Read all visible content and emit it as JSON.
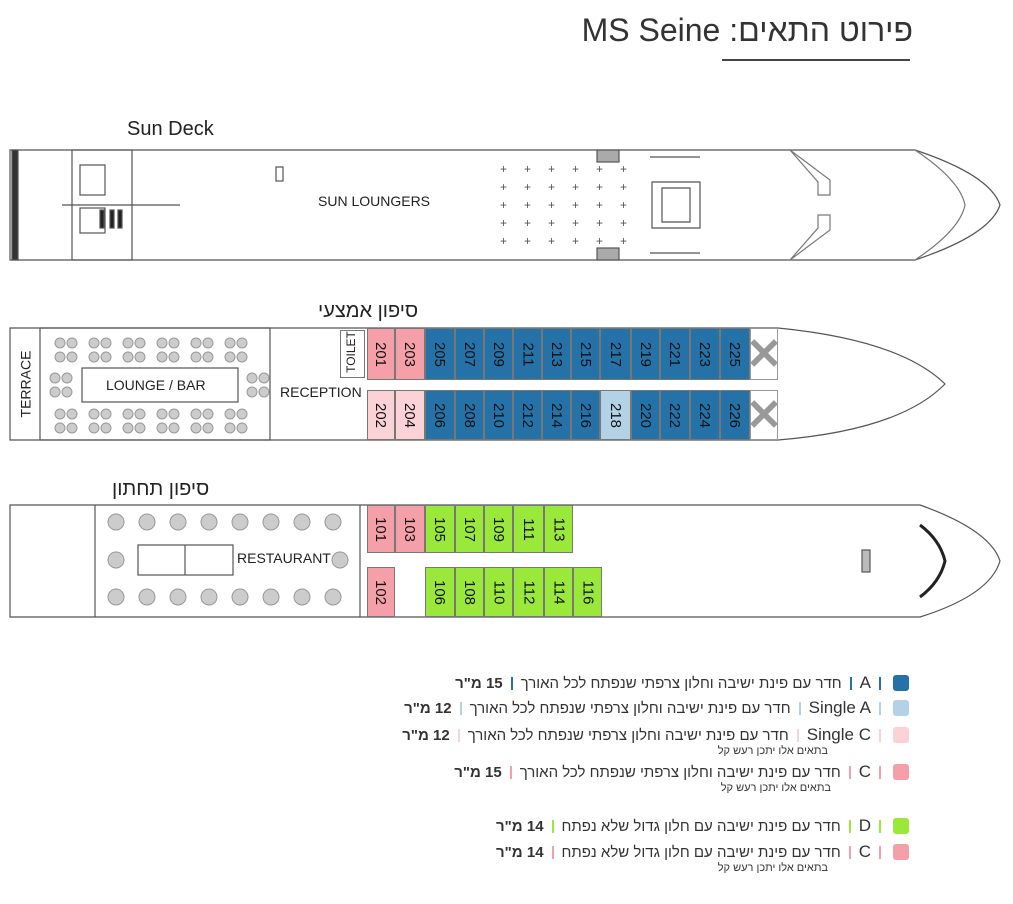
{
  "title": "פירוט התאים: MS Seine",
  "sun_deck": {
    "label": "Sun Deck",
    "area_label": "SUN LOUNGERS"
  },
  "middle_deck": {
    "label": "סיפון אמצעי",
    "terrace": "TERRACE",
    "lounge": "LOUNGE / BAR",
    "reception": "RECEPTION",
    "toilet": "TOILET",
    "top_row": [
      {
        "n": "201",
        "cat": "C"
      },
      {
        "n": "203",
        "cat": "C"
      },
      {
        "n": "205",
        "cat": "A"
      },
      {
        "n": "207",
        "cat": "A"
      },
      {
        "n": "209",
        "cat": "A"
      },
      {
        "n": "211",
        "cat": "A"
      },
      {
        "n": "213",
        "cat": "A"
      },
      {
        "n": "215",
        "cat": "A"
      },
      {
        "n": "217",
        "cat": "A"
      },
      {
        "n": "219",
        "cat": "A"
      },
      {
        "n": "221",
        "cat": "A"
      },
      {
        "n": "223",
        "cat": "A"
      },
      {
        "n": "225",
        "cat": "A"
      }
    ],
    "bottom_row": [
      {
        "n": "202",
        "cat": "SingleC"
      },
      {
        "n": "204",
        "cat": "SingleC"
      },
      {
        "n": "206",
        "cat": "A"
      },
      {
        "n": "208",
        "cat": "A"
      },
      {
        "n": "210",
        "cat": "A"
      },
      {
        "n": "212",
        "cat": "A"
      },
      {
        "n": "214",
        "cat": "A"
      },
      {
        "n": "216",
        "cat": "A"
      },
      {
        "n": "218",
        "cat": "SingleA"
      },
      {
        "n": "220",
        "cat": "A"
      },
      {
        "n": "222",
        "cat": "A"
      },
      {
        "n": "224",
        "cat": "A"
      },
      {
        "n": "226",
        "cat": "A"
      }
    ]
  },
  "lower_deck": {
    "label": "סיפון תחתון",
    "restaurant": "RESTAURANT",
    "top_row": [
      {
        "n": "101",
        "cat": "C"
      },
      {
        "n": "103",
        "cat": "C"
      },
      {
        "n": "105",
        "cat": "D"
      },
      {
        "n": "107",
        "cat": "D"
      },
      {
        "n": "109",
        "cat": "D"
      },
      {
        "n": "111",
        "cat": "D"
      },
      {
        "n": "113",
        "cat": "D"
      }
    ],
    "bottom_row": [
      {
        "n": "102",
        "cat": "C"
      },
      {
        "n": "106",
        "cat": "D"
      },
      {
        "n": "108",
        "cat": "D"
      },
      {
        "n": "110",
        "cat": "D"
      },
      {
        "n": "112",
        "cat": "D"
      },
      {
        "n": "114",
        "cat": "D"
      },
      {
        "n": "116",
        "cat": "D"
      }
    ]
  },
  "colors": {
    "A": "#2472a8",
    "SingleA": "#b4d2e6",
    "SingleC": "#fbd2d6",
    "C": "#f5a0a8",
    "D": "#99e83a"
  },
  "legend": [
    {
      "cat": "A",
      "code": "A",
      "desc": "חדר עם פינת ישיבה וחלון צרפתי שנפתח לכל האורך",
      "size": "15 מ\"ר",
      "note": ""
    },
    {
      "cat": "SingleA",
      "code": "Single A",
      "desc": "חדר עם פינת ישיבה וחלון צרפתי שנפתח לכל האורך",
      "size": "12 מ\"ר",
      "note": ""
    },
    {
      "cat": "SingleC",
      "code": "Single C",
      "desc": "חדר עם פינת ישיבה וחלון צרפתי שנפתח לכל האורך",
      "size": "12 מ\"ר",
      "note": "בתאים אלו יתכן רעש קל"
    },
    {
      "cat": "C",
      "code": "C",
      "desc": "חדר עם פינת ישיבה וחלון צרפתי שנפתח לכל האורך",
      "size": "15 מ\"ר",
      "note": "בתאים אלו יתכן רעש קל"
    },
    {
      "cat": "D",
      "code": "D",
      "desc": "חדר עם פינת ישיבה עם חלון גדול שלא נפתח",
      "size": "14 מ\"ר",
      "note": ""
    },
    {
      "cat": "C",
      "code": "C",
      "desc": "חדר עם פינת ישיבה עם חלון גדול שלא נפתח",
      "size": "14 מ\"ר",
      "note": "בתאים אלו יתכן רעש קל"
    }
  ]
}
